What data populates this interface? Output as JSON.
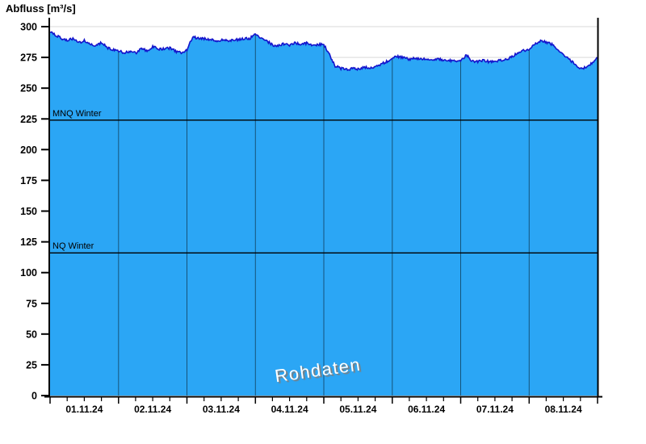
{
  "window": {
    "title": "Abfluss [m³/s]"
  },
  "chart_data": {
    "type": "area",
    "title": "Abfluss [m³/s]",
    "ylabel": "Abfluss [m³/s]",
    "xlabel": "",
    "ylim": [
      0,
      300
    ],
    "ytick_step": 25,
    "grid": true,
    "legend": "none",
    "x_start": "01.11.2024 00:00",
    "sample_interval_hours": 2,
    "x_tick_labels": [
      "01.11.24",
      "02.11.24",
      "03.11.24",
      "04.11.24",
      "05.11.24",
      "06.11.24",
      "07.11.24",
      "08.11.24"
    ],
    "series": [
      {
        "name": "Abfluss Rohdaten",
        "values": [
          295.5,
          293,
          290.5,
          289,
          290,
          287,
          288.5,
          285.5,
          284.5,
          287,
          283,
          281.5,
          280.5,
          278.5,
          280,
          278.5,
          282,
          280.5,
          284,
          281.5,
          282,
          282.5,
          280,
          279,
          281,
          291.5,
          290.5,
          290,
          289.5,
          288.5,
          289,
          288.5,
          289,
          289.5,
          290,
          290.5,
          293.5,
          291,
          288.5,
          285,
          284.5,
          286,
          285,
          287,
          285.5,
          286.5,
          285,
          285.5,
          285.5,
          277,
          268,
          266,
          265,
          266,
          265.5,
          267,
          266.5,
          267.5,
          269.5,
          271.5,
          274.5,
          275.5,
          275,
          273.5,
          274.5,
          273.5,
          274,
          273,
          273.5,
          273,
          272.5,
          272.5,
          272,
          277,
          272,
          271.5,
          272.5,
          271.5,
          272,
          272.5,
          273,
          275.5,
          278.5,
          280.5,
          281.5,
          286,
          288.5,
          287.5,
          285.5,
          281.5,
          277.5,
          273.5,
          269.5,
          265.5,
          267,
          270.5,
          274.5
        ]
      }
    ],
    "reference_lines": [
      {
        "label": "MNQ Winter",
        "value": 224
      },
      {
        "label": "NQ Winter",
        "value": 116
      }
    ],
    "watermark": "Rohdaten",
    "colors": {
      "fill": "#2BA6F5",
      "line": "#1414CC",
      "grid": "#D9D9D9",
      "day_line": "rgba(0,0,0,0.5)",
      "axis": "#000000",
      "reference_line": "#000000"
    },
    "noise_amplitude": 1.0
  }
}
